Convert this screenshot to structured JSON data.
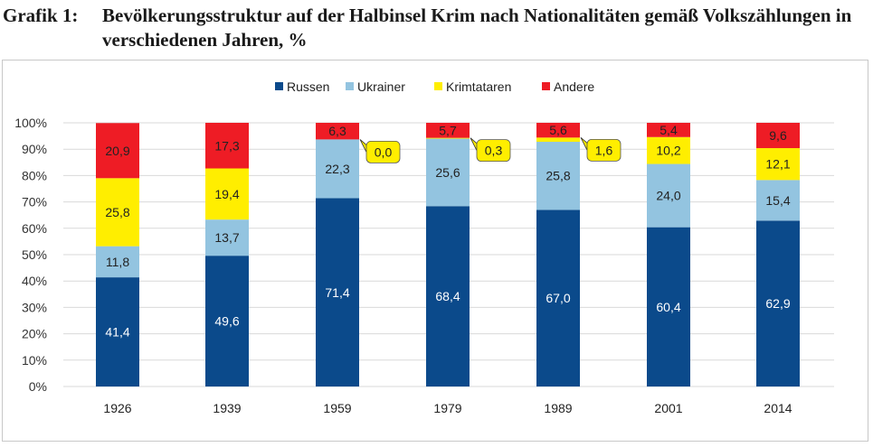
{
  "caption": {
    "label": "Grafik 1:",
    "text": "Bevölkerungsstruktur auf der Halbinsel Krim nach Nationalitäten gemäß Volkszählungen in verschiedenen Jahren, %"
  },
  "chart_data": {
    "type": "bar",
    "stacked": true,
    "categories": [
      "1926",
      "1939",
      "1959",
      "1979",
      "1989",
      "2001",
      "2014"
    ],
    "series": [
      {
        "name": "Russen",
        "color": "#0b4a8b",
        "values": [
          41.4,
          49.6,
          71.4,
          68.4,
          67.0,
          60.4,
          62.9
        ],
        "labels": [
          "41,4",
          "49,6",
          "71,4",
          "68,4",
          "67,0",
          "60,4",
          "62,9"
        ]
      },
      {
        "name": "Ukrainer",
        "color": "#93c4e0",
        "values": [
          11.8,
          13.7,
          22.3,
          25.6,
          25.8,
          24.0,
          15.4
        ],
        "labels": [
          "11,8",
          "13,7",
          "22,3",
          "25,6",
          "25,8",
          "24,0",
          "15,4"
        ]
      },
      {
        "name": "Krimtataren",
        "color": "#ffee00",
        "values": [
          25.8,
          19.4,
          0.0,
          0.3,
          1.6,
          10.2,
          12.1
        ],
        "labels": [
          "25,8",
          "19,4",
          "0,0",
          "0,3",
          "1,6",
          "10,2",
          "12,1"
        ]
      },
      {
        "name": "Andere",
        "color": "#ee1c25",
        "values": [
          20.9,
          17.3,
          6.3,
          5.7,
          5.6,
          5.4,
          9.6
        ],
        "labels": [
          "20,9",
          "17,3",
          "6,3",
          "5,7",
          "5,6",
          "5,4",
          "9,6"
        ]
      }
    ],
    "callout_series": "Krimtataren",
    "callout_categories": [
      "1959",
      "1979",
      "1989"
    ],
    "yticks": [
      "0%",
      "10%",
      "20%",
      "30%",
      "40%",
      "50%",
      "60%",
      "70%",
      "80%",
      "90%",
      "100%"
    ],
    "ylim": [
      0,
      100
    ],
    "grid": true,
    "legend": "top-center"
  }
}
